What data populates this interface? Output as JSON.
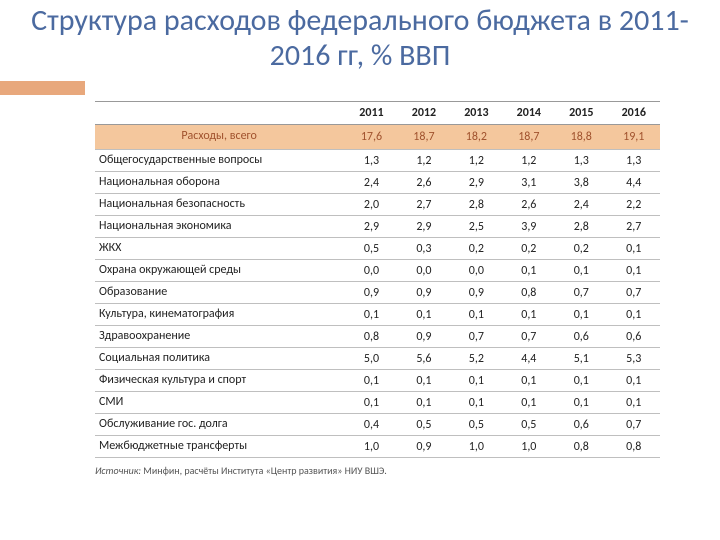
{
  "title": "Структура расходов федерального бюджета в 2011-2016 гг, % ВВП",
  "accent_color": "#e8a87c",
  "title_color": "#4b6aa0",
  "title_fontsize": 30,
  "table": {
    "type": "table",
    "columns": [
      "",
      "2011",
      "2012",
      "2013",
      "2014",
      "2015",
      "2016"
    ],
    "col_align": [
      "left",
      "center",
      "center",
      "center",
      "center",
      "center",
      "center"
    ],
    "total_row": {
      "label": "Расходы, всего",
      "values": [
        "17,6",
        "18,7",
        "18,2",
        "18,7",
        "18,8",
        "19,1"
      ],
      "bg_color": "#f4c79d",
      "text_color": "#a0522d"
    },
    "rows": [
      {
        "label": "Общегосударственные вопросы",
        "values": [
          "1,3",
          "1,2",
          "1,2",
          "1,2",
          "1,3",
          "1,3"
        ]
      },
      {
        "label": "Национальная оборона",
        "values": [
          "2,4",
          "2,6",
          "2,9",
          "3,1",
          "3,8",
          "4,4"
        ]
      },
      {
        "label": "Национальная безопасность",
        "values": [
          "2,0",
          "2,7",
          "2,8",
          "2,6",
          "2,4",
          "2,2"
        ]
      },
      {
        "label": "Национальная экономика",
        "values": [
          "2,9",
          "2,9",
          "2,5",
          "3,9",
          "2,8",
          "2,7"
        ]
      },
      {
        "label": "ЖКХ",
        "values": [
          "0,5",
          "0,3",
          "0,2",
          "0,2",
          "0,2",
          "0,1"
        ]
      },
      {
        "label": "Охрана окружающей среды",
        "values": [
          "0,0",
          "0,0",
          "0,0",
          "0,1",
          "0,1",
          "0,1"
        ]
      },
      {
        "label": "Образование",
        "values": [
          "0,9",
          "0,9",
          "0,9",
          "0,8",
          "0,7",
          "0,7"
        ]
      },
      {
        "label": "Культура, кинематография",
        "values": [
          "0,1",
          "0,1",
          "0,1",
          "0,1",
          "0,1",
          "0,1"
        ]
      },
      {
        "label": "Здравоохранение",
        "values": [
          "0,8",
          "0,9",
          "0,7",
          "0,7",
          "0,6",
          "0,6"
        ]
      },
      {
        "label": "Социальная политика",
        "values": [
          "5,0",
          "5,6",
          "5,2",
          "4,4",
          "5,1",
          "5,3"
        ]
      },
      {
        "label": "Физическая культура и спорт",
        "values": [
          "0,1",
          "0,1",
          "0,1",
          "0,1",
          "0,1",
          "0,1"
        ]
      },
      {
        "label": "СМИ",
        "values": [
          "0,1",
          "0,1",
          "0,1",
          "0,1",
          "0,1",
          "0,1"
        ]
      },
      {
        "label": "Обслуживание гос. долга",
        "values": [
          "0,4",
          "0,5",
          "0,5",
          "0,5",
          "0,6",
          "0,7"
        ]
      },
      {
        "label": "Межбюджетные трансферты",
        "values": [
          "1,0",
          "0,9",
          "1,0",
          "1,0",
          "0,8",
          "0,8"
        ]
      }
    ],
    "border_color": "#bfbfbf",
    "header_border_color": "#999999",
    "fontsize": 12
  },
  "footnote": {
    "label": "Источник:",
    "text": " Минфин, расчёты Института «Центр развития» НИУ ВШЭ.",
    "fontsize": 10,
    "color": "#555555"
  }
}
